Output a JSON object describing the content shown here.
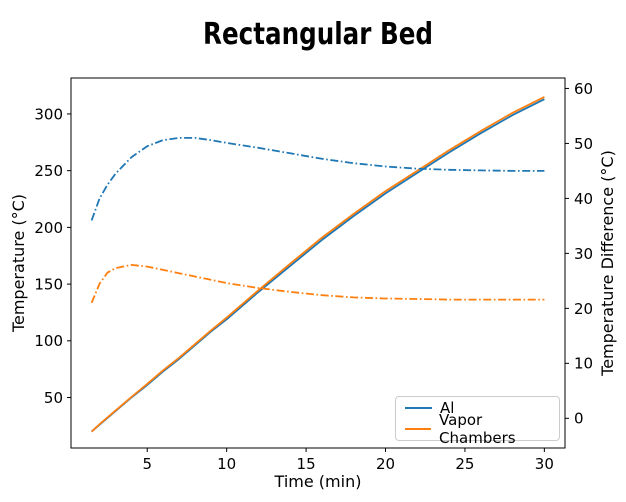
{
  "figure": {
    "title": "Rectangular Bed"
  },
  "chart_data": {
    "type": "line",
    "title": "Rectangular Bed",
    "xlabel": "Time (min)",
    "ylabel_left": "Temperature (°C)",
    "ylabel_right": "Temperature Difference (°C)",
    "xlim": [
      0.2,
      31.3
    ],
    "ylim_left": [
      5.5,
      331.7
    ],
    "ylim_right": [
      -5.4,
      61.9
    ],
    "xticks": [
      5,
      10,
      15,
      20,
      25,
      30
    ],
    "yticks_left": [
      50,
      100,
      150,
      200,
      250,
      300
    ],
    "yticks_right": [
      0,
      10,
      20,
      30,
      40,
      50,
      60
    ],
    "grid": false,
    "x": [
      1.5,
      2,
      2.5,
      3,
      4,
      5,
      6,
      7,
      8,
      9,
      10,
      12,
      14,
      16,
      18,
      20,
      22,
      24,
      26,
      28,
      30
    ],
    "series": [
      {
        "name": "Al temperature",
        "axis": "left",
        "style": "solid",
        "color": "#1f77b4",
        "values": [
          20,
          26,
          32,
          38,
          50,
          61,
          73,
          84,
          96,
          108,
          119,
          143,
          166,
          189,
          210,
          230,
          248,
          266,
          283,
          299,
          313
        ]
      },
      {
        "name": "Vapor Chambers temperature",
        "axis": "left",
        "style": "solid",
        "color": "#ff7f0e",
        "values": [
          20,
          26.5,
          32.5,
          38.5,
          50.5,
          62,
          74,
          85,
          97,
          109,
          120.5,
          144.5,
          168,
          191,
          212,
          232,
          250,
          268,
          285,
          301,
          315
        ]
      },
      {
        "name": "Al temperature difference",
        "axis": "right",
        "style": "dashdot",
        "color": "#1f77b4",
        "values": [
          36,
          40,
          42.5,
          44.5,
          47.5,
          49.5,
          50.6,
          51,
          51,
          50.6,
          50.1,
          49.2,
          48.2,
          47.2,
          46.4,
          45.8,
          45.4,
          45.2,
          45.1,
          45,
          45
        ]
      },
      {
        "name": "Vapor Chambers temperature difference",
        "axis": "right",
        "style": "dashdot",
        "color": "#ff7f0e",
        "values": [
          21,
          24.5,
          26.5,
          27.3,
          27.9,
          27.6,
          27,
          26.4,
          25.8,
          25.2,
          24.6,
          23.7,
          23,
          22.4,
          22,
          21.8,
          21.7,
          21.6,
          21.6,
          21.6,
          21.6
        ]
      }
    ],
    "legend": {
      "position": "lower right",
      "entries": [
        {
          "label": "Al",
          "color": "#1f77b4",
          "style": "solid"
        },
        {
          "label": "Vapor Chambers",
          "color": "#ff7f0e",
          "style": "solid"
        }
      ]
    }
  }
}
